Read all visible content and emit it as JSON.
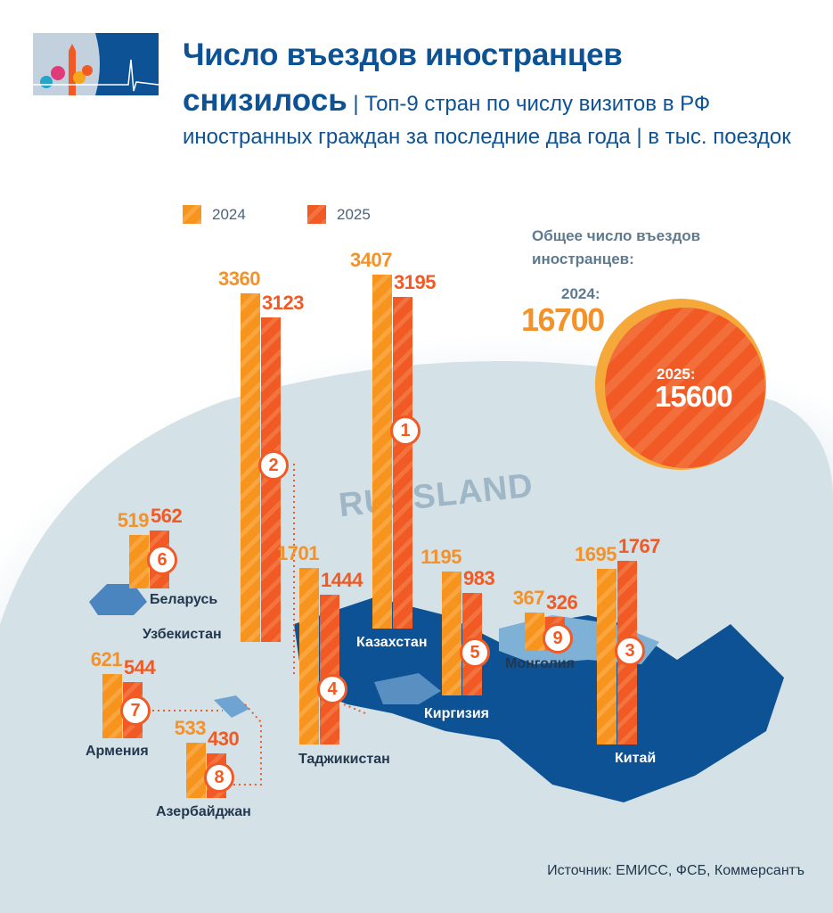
{
  "title": "Число въездов иностранцев",
  "title_cont": "снизилось",
  "subtitle": "| Топ-9 стран по числу визитов в РФ иностранных граждан за последние два года | в тыс. поездок",
  "map_label": "RUSSLAND",
  "colors": {
    "y2024": "#f7941d",
    "y2025": "#f15a24",
    "title": "#0d5295",
    "map_dark": "#0d5295",
    "map_light": "#d3e0e6"
  },
  "totals": {
    "heading": "Общее число въездов иностранцев:",
    "label_2024": "2024:",
    "value_2024": "16700",
    "label_2025": "2025:",
    "value_2025": "15600"
  },
  "source": "Источник: ЕМИСС, ФСБ, Коммерсантъ",
  "chart_data": {
    "type": "bar",
    "series": [
      {
        "name": "2024"
      },
      {
        "name": "2025"
      }
    ],
    "legend": "top-left",
    "unit": "тыс. поездок",
    "countries": [
      {
        "name": "Казахстан",
        "rank": "1",
        "v2024": 3407,
        "v2025": 3195
      },
      {
        "name": "Узбекистан",
        "rank": "2",
        "v2024": 3360,
        "v2025": 3123
      },
      {
        "name": "Китай",
        "rank": "3",
        "v2024": 1695,
        "v2025": 1767
      },
      {
        "name": "Таджикистан",
        "rank": "4",
        "v2024": 1701,
        "v2025": 1444
      },
      {
        "name": "Киргизия",
        "rank": "5",
        "v2024": 1195,
        "v2025": 983
      },
      {
        "name": "Беларусь",
        "rank": "6",
        "v2024": 519,
        "v2025": 562
      },
      {
        "name": "Армения",
        "rank": "7",
        "v2024": 621,
        "v2025": 544
      },
      {
        "name": "Азербайджан",
        "rank": "8",
        "v2024": 533,
        "v2025": 430
      },
      {
        "name": "Монголия",
        "rank": "9",
        "v2024": 367,
        "v2025": 326
      }
    ]
  }
}
